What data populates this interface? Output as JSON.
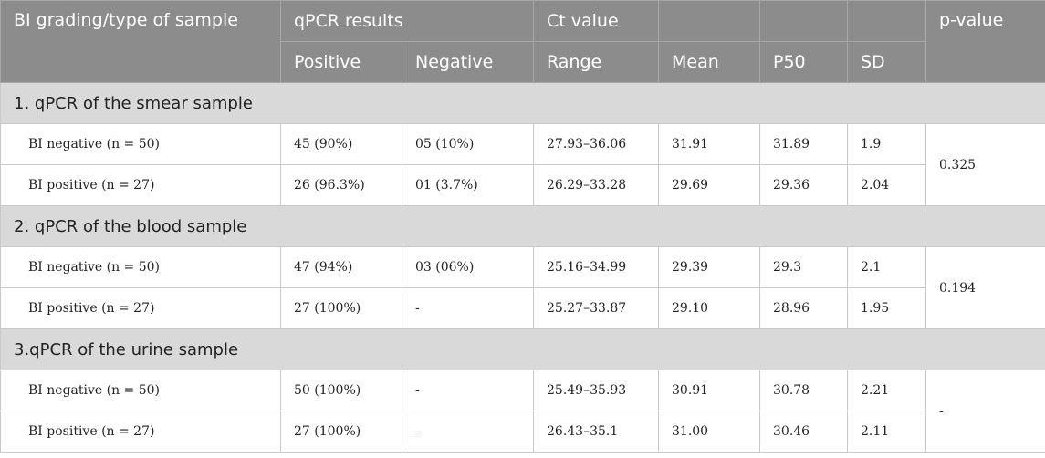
{
  "header": {
    "col1": "BI grading/type of sample",
    "qpcr_results": "qPCR results",
    "ct_value": "Ct value",
    "p_value": "p-value",
    "positive": "Positive",
    "negative": "Negative",
    "range": "Range",
    "mean": "Mean",
    "p50": "P50",
    "sd": "SD"
  },
  "sections": [
    {
      "title": "1. qPCR of the smear sample",
      "p_value": "0.325",
      "rows": [
        {
          "label": "BI negative (n = 50)",
          "positive": "45 (90%)",
          "negative": "05 (10%)",
          "range": "27.93–36.06",
          "mean": "31.91",
          "p50": "31.89",
          "sd": "1.9"
        },
        {
          "label": "BI positive (n = 27)",
          "positive": "26 (96.3%)",
          "negative": "01 (3.7%)",
          "range": "26.29–33.28",
          "mean": "29.69",
          "p50": "29.36",
          "sd": "2.04"
        }
      ]
    },
    {
      "title": "2. qPCR of the blood sample",
      "p_value": "0.194",
      "rows": [
        {
          "label": "BI negative (n = 50)",
          "positive": "47 (94%)",
          "negative": "03 (06%)",
          "range": "25.16–34.99",
          "mean": "29.39",
          "p50": "29.3",
          "sd": "2.1"
        },
        {
          "label": "BI positive (n = 27)",
          "positive": "27 (100%)",
          "negative": "-",
          "range": "25.27–33.87",
          "mean": "29.10",
          "p50": "28.96",
          "sd": "1.95"
        }
      ]
    },
    {
      "title": "3.qPCR of the urine sample",
      "p_value": "-",
      "rows": [
        {
          "label": "BI negative (n = 50)",
          "positive": "50 (100%)",
          "negative": "-",
          "range": "25.49–35.93",
          "mean": "30.91",
          "p50": "30.78",
          "sd": "2.21"
        },
        {
          "label": "BI positive (n = 27)",
          "positive": "27 (100%)",
          "negative": "-",
          "range": "26.43–35.1",
          "mean": "31.00",
          "p50": "30.46",
          "sd": "2.11"
        }
      ]
    }
  ]
}
